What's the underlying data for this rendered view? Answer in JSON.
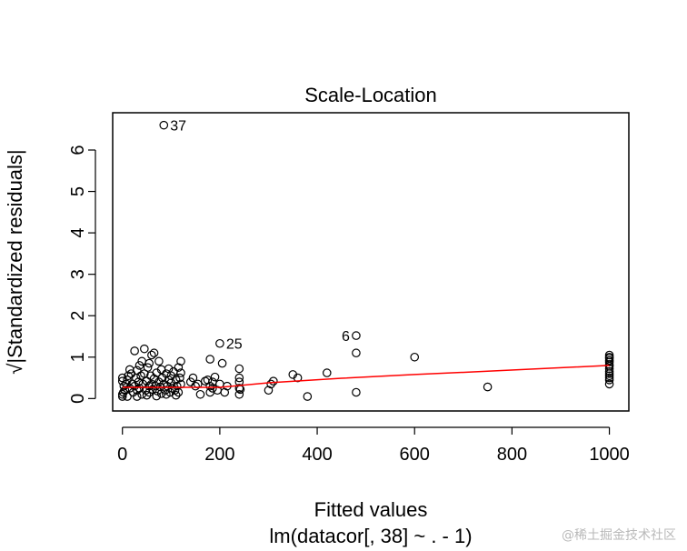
{
  "chart_data": {
    "type": "scatter",
    "title": "Scale-Location",
    "xlabel": "Fitted values",
    "subtitle": "lm(datacor[, 38] ~ . - 1)",
    "ylabel": "√|Standardized residuals|",
    "xlim": [
      -20,
      1040
    ],
    "ylim": [
      -0.3,
      6.9
    ],
    "x_ticks": [
      0,
      200,
      400,
      600,
      800,
      1000
    ],
    "y_ticks": [
      0,
      1,
      2,
      3,
      4,
      5,
      6
    ],
    "grid": false,
    "point_color": "#000000",
    "line_color": "#ff0000",
    "labeled_points": [
      {
        "label": "37",
        "x": 85,
        "y": 6.6
      },
      {
        "label": "25",
        "x": 200,
        "y": 1.33
      },
      {
        "label": "6",
        "x": 480,
        "y": 1.52
      }
    ],
    "points": [
      [
        0,
        0.05
      ],
      [
        0,
        0.1
      ],
      [
        2,
        0.15
      ],
      [
        5,
        0.2
      ],
      [
        3,
        0.3
      ],
      [
        0,
        0.42
      ],
      [
        0,
        0.5
      ],
      [
        8,
        0.35
      ],
      [
        10,
        0.45
      ],
      [
        12,
        0.55
      ],
      [
        15,
        0.25
      ],
      [
        18,
        0.6
      ],
      [
        20,
        0.35
      ],
      [
        22,
        0.15
      ],
      [
        25,
        0.3
      ],
      [
        25,
        1.15
      ],
      [
        28,
        0.5
      ],
      [
        30,
        0.68
      ],
      [
        30,
        0.2
      ],
      [
        33,
        0.4
      ],
      [
        35,
        0.25
      ],
      [
        38,
        0.55
      ],
      [
        40,
        0.1
      ],
      [
        40,
        0.9
      ],
      [
        42,
        0.35
      ],
      [
        45,
        1.2
      ],
      [
        45,
        0.6
      ],
      [
        48,
        0.2
      ],
      [
        50,
        0.42
      ],
      [
        52,
        0.75
      ],
      [
        55,
        0.3
      ],
      [
        55,
        0.15
      ],
      [
        58,
        0.55
      ],
      [
        60,
        1.05
      ],
      [
        60,
        0.35
      ],
      [
        62,
        0.22
      ],
      [
        65,
        0.48
      ],
      [
        65,
        1.1
      ],
      [
        68,
        0.3
      ],
      [
        70,
        0.62
      ],
      [
        72,
        0.18
      ],
      [
        75,
        0.4
      ],
      [
        78,
        0.28
      ],
      [
        80,
        0.7
      ],
      [
        80,
        0.12
      ],
      [
        82,
        0.5
      ],
      [
        85,
        0.35
      ],
      [
        88,
        0.2
      ],
      [
        90,
        0.6
      ],
      [
        92,
        0.3
      ],
      [
        95,
        0.45
      ],
      [
        98,
        0.15
      ],
      [
        100,
        0.38
      ],
      [
        100,
        0.55
      ],
      [
        102,
        0.25
      ],
      [
        105,
        0.65
      ],
      [
        108,
        0.2
      ],
      [
        110,
        0.45
      ],
      [
        112,
        0.3
      ],
      [
        115,
        0.75
      ],
      [
        115,
        0.15
      ],
      [
        118,
        0.5
      ],
      [
        120,
        0.9
      ],
      [
        120,
        0.35
      ],
      [
        120,
        0.62
      ],
      [
        15,
        0.7
      ],
      [
        35,
        0.8
      ],
      [
        55,
        0.85
      ],
      [
        75,
        0.9
      ],
      [
        95,
        0.72
      ],
      [
        10,
        0.05
      ],
      [
        30,
        0.05
      ],
      [
        50,
        0.08
      ],
      [
        70,
        0.06
      ],
      [
        90,
        0.1
      ],
      [
        110,
        0.08
      ],
      [
        140,
        0.4
      ],
      [
        145,
        0.5
      ],
      [
        150,
        0.3
      ],
      [
        155,
        0.35
      ],
      [
        160,
        0.1
      ],
      [
        170,
        0.42
      ],
      [
        175,
        0.45
      ],
      [
        180,
        0.15
      ],
      [
        180,
        0.3
      ],
      [
        180,
        0.95
      ],
      [
        185,
        0.25
      ],
      [
        185,
        0.4
      ],
      [
        190,
        0.52
      ],
      [
        195,
        0.2
      ],
      [
        200,
        0.35
      ],
      [
        205,
        0.85
      ],
      [
        210,
        0.15
      ],
      [
        215,
        0.3
      ],
      [
        240,
        0.1
      ],
      [
        240,
        0.25
      ],
      [
        240,
        0.4
      ],
      [
        240,
        0.5
      ],
      [
        240,
        0.72
      ],
      [
        242,
        0.22
      ],
      [
        300,
        0.2
      ],
      [
        305,
        0.35
      ],
      [
        310,
        0.42
      ],
      [
        350,
        0.58
      ],
      [
        360,
        0.5
      ],
      [
        380,
        0.05
      ],
      [
        420,
        0.62
      ],
      [
        480,
        0.15
      ],
      [
        480,
        1.1
      ],
      [
        600,
        1.0
      ],
      [
        750,
        0.28
      ],
      [
        1000,
        0.35
      ],
      [
        1000,
        0.5
      ],
      [
        1000,
        0.6
      ],
      [
        1000,
        0.65
      ],
      [
        1000,
        0.72
      ],
      [
        1000,
        0.78
      ],
      [
        1000,
        0.82
      ],
      [
        1000,
        0.88
      ],
      [
        1000,
        0.92
      ],
      [
        1000,
        0.97
      ],
      [
        1000,
        1.0
      ],
      [
        1000,
        1.05
      ],
      [
        1000,
        0.45
      ],
      [
        1000,
        0.55
      ]
    ],
    "smoother": [
      [
        0,
        0.27
      ],
      [
        120,
        0.27
      ],
      [
        200,
        0.27
      ],
      [
        300,
        0.38
      ],
      [
        450,
        0.49
      ],
      [
        600,
        0.58
      ],
      [
        750,
        0.66
      ],
      [
        1000,
        0.8
      ]
    ]
  },
  "watermark": "@稀土掘金技术社区"
}
